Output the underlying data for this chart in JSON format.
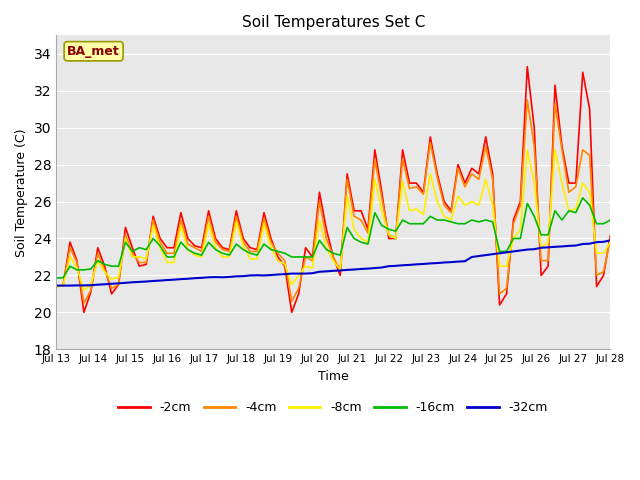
{
  "title": "Soil Temperatures Set C",
  "xlabel": "Time",
  "ylabel": "Soil Temperature (C)",
  "ylim": [
    18,
    35
  ],
  "yticks": [
    18,
    20,
    22,
    24,
    26,
    28,
    30,
    32,
    34
  ],
  "plot_bg": "#e8e8e8",
  "fig_bg": "#ffffff",
  "annotation_text": "BA_met",
  "annotation_color": "#8b0000",
  "annotation_bg": "#ffffaa",
  "annotation_edge": "#999900",
  "series_order": [
    "-2cm",
    "-4cm",
    "-8cm",
    "-16cm",
    "-32cm"
  ],
  "series_colors": [
    "#ff0000",
    "#ff8800",
    "#ffee00",
    "#00bb00",
    "#0000cc"
  ],
  "series_lw": [
    1.2,
    1.2,
    1.2,
    1.2,
    1.5
  ],
  "xtick_labels": [
    "Jul 13",
    "Jul 14",
    "Jul 15",
    "Jul 16",
    "Jul 17",
    "Jul 18",
    "Jul 19",
    "Jul 20",
    "Jul 21",
    "Jul 22",
    "Jul 23",
    "Jul 24",
    "Jul 25",
    "Jul 26",
    "Jul 27",
    "Jul 28"
  ],
  "t_2cm": [
    21.4,
    21.45,
    23.8,
    22.8,
    20.0,
    21.1,
    23.5,
    22.5,
    21.0,
    21.5,
    24.6,
    23.5,
    22.5,
    22.6,
    25.2,
    24.0,
    23.5,
    23.5,
    25.4,
    24.0,
    23.6,
    23.5,
    25.5,
    24.0,
    23.5,
    23.4,
    25.5,
    24.0,
    23.5,
    23.4,
    25.4,
    24.0,
    23.0,
    22.5,
    20.0,
    21.0,
    23.5,
    23.0,
    26.5,
    24.5,
    23.0,
    22.0,
    27.5,
    25.5,
    25.5,
    24.5,
    28.8,
    26.5,
    24.0,
    24.0,
    28.8,
    27.0,
    27.0,
    26.5,
    29.5,
    27.5,
    26.0,
    25.5,
    28.0,
    27.0,
    27.8,
    27.5,
    29.5,
    27.5,
    20.4,
    21.0,
    25.0,
    26.0,
    33.3,
    30.0,
    22.0,
    22.5,
    32.3,
    29.0,
    27.0,
    27.0,
    33.0,
    31.0,
    21.4,
    22.0,
    24.2
  ],
  "t_4cm": [
    21.4,
    21.45,
    23.5,
    22.7,
    20.5,
    21.2,
    23.2,
    22.3,
    21.3,
    21.5,
    24.2,
    23.2,
    22.7,
    22.7,
    25.0,
    23.8,
    23.2,
    23.2,
    25.0,
    23.7,
    23.5,
    23.3,
    25.2,
    23.8,
    23.4,
    23.3,
    25.2,
    23.8,
    23.3,
    23.3,
    25.1,
    23.8,
    23.2,
    22.8,
    20.6,
    21.3,
    23.0,
    22.8,
    26.0,
    24.0,
    23.0,
    22.3,
    27.2,
    25.2,
    25.0,
    24.3,
    28.3,
    26.2,
    24.2,
    24.0,
    28.3,
    26.7,
    26.8,
    26.4,
    29.2,
    27.3,
    25.8,
    25.4,
    27.8,
    26.8,
    27.5,
    27.2,
    29.0,
    27.2,
    21.0,
    21.3,
    24.8,
    25.8,
    31.5,
    29.0,
    22.8,
    22.8,
    31.3,
    28.8,
    26.5,
    26.8,
    28.8,
    28.5,
    22.0,
    22.2,
    24.0
  ],
  "t_8cm": [
    21.4,
    21.44,
    23.0,
    22.4,
    21.2,
    21.5,
    22.8,
    22.2,
    21.8,
    21.9,
    24.0,
    23.0,
    23.0,
    22.9,
    24.7,
    23.5,
    22.7,
    22.7,
    24.7,
    23.4,
    23.1,
    23.0,
    24.8,
    23.5,
    23.0,
    23.0,
    24.9,
    23.6,
    22.9,
    22.9,
    24.8,
    23.5,
    22.8,
    22.6,
    21.5,
    22.0,
    22.5,
    22.4,
    25.0,
    23.5,
    22.8,
    22.3,
    26.3,
    24.5,
    24.0,
    23.8,
    27.2,
    25.5,
    24.2,
    24.0,
    27.1,
    25.5,
    25.6,
    25.3,
    27.5,
    26.0,
    25.2,
    25.0,
    26.3,
    25.8,
    26.0,
    25.8,
    27.2,
    25.8,
    22.5,
    22.5,
    24.0,
    24.5,
    28.8,
    27.0,
    23.5,
    23.8,
    28.8,
    27.0,
    25.5,
    25.6,
    27.0,
    26.5,
    23.2,
    23.2,
    23.8
  ],
  "t_16cm": [
    21.85,
    21.88,
    22.5,
    22.3,
    22.3,
    22.35,
    22.8,
    22.6,
    22.5,
    22.5,
    23.8,
    23.3,
    23.5,
    23.4,
    24.0,
    23.6,
    23.0,
    23.0,
    23.8,
    23.4,
    23.2,
    23.1,
    23.8,
    23.4,
    23.2,
    23.1,
    23.7,
    23.4,
    23.2,
    23.1,
    23.7,
    23.4,
    23.3,
    23.2,
    23.0,
    23.0,
    23.0,
    23.0,
    23.9,
    23.4,
    23.2,
    23.1,
    24.6,
    24.0,
    23.8,
    23.7,
    25.4,
    24.7,
    24.5,
    24.4,
    25.0,
    24.8,
    24.8,
    24.8,
    25.2,
    25.0,
    25.0,
    24.9,
    24.8,
    24.8,
    25.0,
    24.9,
    25.0,
    24.9,
    23.3,
    23.3,
    24.0,
    24.0,
    25.9,
    25.2,
    24.2,
    24.2,
    25.5,
    25.0,
    25.5,
    25.4,
    26.2,
    25.8,
    24.8,
    24.8,
    25.0
  ],
  "t_32cm": [
    21.45,
    21.45,
    21.45,
    21.46,
    21.46,
    21.47,
    21.5,
    21.52,
    21.55,
    21.57,
    21.6,
    21.63,
    21.65,
    21.67,
    21.7,
    21.72,
    21.75,
    21.77,
    21.8,
    21.82,
    21.85,
    21.87,
    21.9,
    21.91,
    21.9,
    21.92,
    21.95,
    21.96,
    22.0,
    22.01,
    22.0,
    22.02,
    22.05,
    22.07,
    22.1,
    22.1,
    22.1,
    22.12,
    22.2,
    22.22,
    22.25,
    22.27,
    22.3,
    22.32,
    22.35,
    22.37,
    22.4,
    22.43,
    22.5,
    22.52,
    22.55,
    22.57,
    22.6,
    22.62,
    22.65,
    22.67,
    22.7,
    22.72,
    22.75,
    22.77,
    23.0,
    23.05,
    23.1,
    23.15,
    23.2,
    23.25,
    23.3,
    23.35,
    23.4,
    23.42,
    23.5,
    23.52,
    23.55,
    23.57,
    23.6,
    23.62,
    23.7,
    23.72,
    23.8,
    23.82,
    23.9
  ]
}
